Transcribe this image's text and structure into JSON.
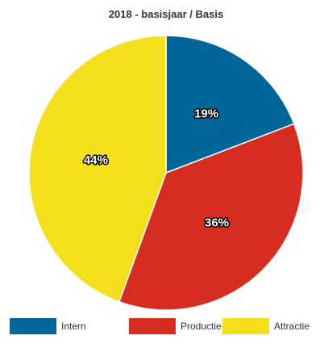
{
  "chart_data": {
    "type": "pie",
    "title": "2018 - basisjaar / Basis",
    "series": [
      {
        "name": "Intern",
        "value": 19,
        "label": "19%",
        "color": "#006699"
      },
      {
        "name": "Productie",
        "value": 36,
        "label": "36%",
        "color": "#d62d20"
      },
      {
        "name": "Attractie",
        "value": 44,
        "label": "44%",
        "color": "#f4df1c"
      }
    ],
    "start": "top",
    "direction": "clockwise",
    "legend_position": "bottom"
  }
}
